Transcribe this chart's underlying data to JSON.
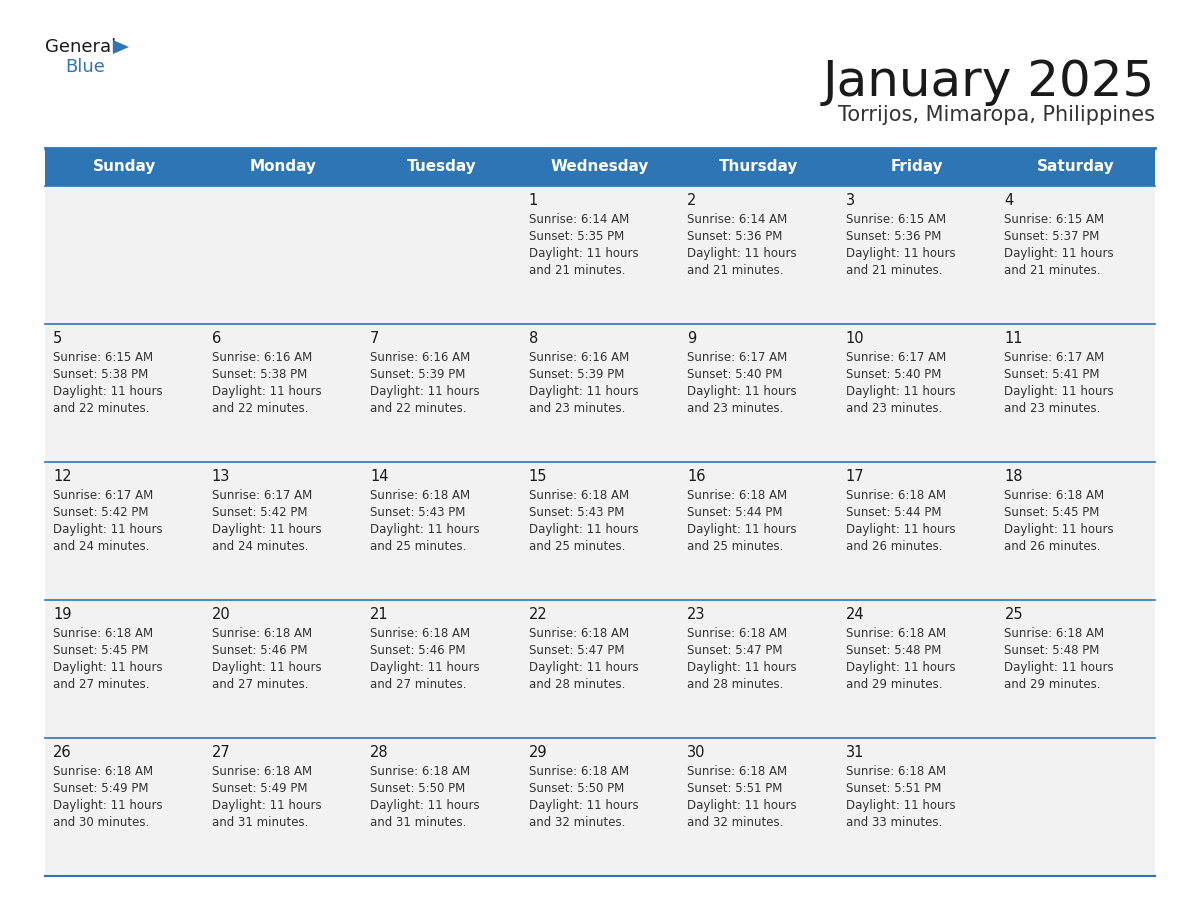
{
  "title": "January 2025",
  "subtitle": "Torrijos, Mimaropa, Philippines",
  "header_bg": "#2E75B6",
  "header_text_color": "#FFFFFF",
  "cell_bg_light": "#F2F2F2",
  "cell_bg_white": "#FFFFFF",
  "border_color": "#2E75B6",
  "day_headers": [
    "Sunday",
    "Monday",
    "Tuesday",
    "Wednesday",
    "Thursday",
    "Friday",
    "Saturday"
  ],
  "calendar_data": [
    [
      "",
      "",
      "",
      "1\nSunrise: 6:14 AM\nSunset: 5:35 PM\nDaylight: 11 hours\nand 21 minutes.",
      "2\nSunrise: 6:14 AM\nSunset: 5:36 PM\nDaylight: 11 hours\nand 21 minutes.",
      "3\nSunrise: 6:15 AM\nSunset: 5:36 PM\nDaylight: 11 hours\nand 21 minutes.",
      "4\nSunrise: 6:15 AM\nSunset: 5:37 PM\nDaylight: 11 hours\nand 21 minutes."
    ],
    [
      "5\nSunrise: 6:15 AM\nSunset: 5:38 PM\nDaylight: 11 hours\nand 22 minutes.",
      "6\nSunrise: 6:16 AM\nSunset: 5:38 PM\nDaylight: 11 hours\nand 22 minutes.",
      "7\nSunrise: 6:16 AM\nSunset: 5:39 PM\nDaylight: 11 hours\nand 22 minutes.",
      "8\nSunrise: 6:16 AM\nSunset: 5:39 PM\nDaylight: 11 hours\nand 23 minutes.",
      "9\nSunrise: 6:17 AM\nSunset: 5:40 PM\nDaylight: 11 hours\nand 23 minutes.",
      "10\nSunrise: 6:17 AM\nSunset: 5:40 PM\nDaylight: 11 hours\nand 23 minutes.",
      "11\nSunrise: 6:17 AM\nSunset: 5:41 PM\nDaylight: 11 hours\nand 23 minutes."
    ],
    [
      "12\nSunrise: 6:17 AM\nSunset: 5:42 PM\nDaylight: 11 hours\nand 24 minutes.",
      "13\nSunrise: 6:17 AM\nSunset: 5:42 PM\nDaylight: 11 hours\nand 24 minutes.",
      "14\nSunrise: 6:18 AM\nSunset: 5:43 PM\nDaylight: 11 hours\nand 25 minutes.",
      "15\nSunrise: 6:18 AM\nSunset: 5:43 PM\nDaylight: 11 hours\nand 25 minutes.",
      "16\nSunrise: 6:18 AM\nSunset: 5:44 PM\nDaylight: 11 hours\nand 25 minutes.",
      "17\nSunrise: 6:18 AM\nSunset: 5:44 PM\nDaylight: 11 hours\nand 26 minutes.",
      "18\nSunrise: 6:18 AM\nSunset: 5:45 PM\nDaylight: 11 hours\nand 26 minutes."
    ],
    [
      "19\nSunrise: 6:18 AM\nSunset: 5:45 PM\nDaylight: 11 hours\nand 27 minutes.",
      "20\nSunrise: 6:18 AM\nSunset: 5:46 PM\nDaylight: 11 hours\nand 27 minutes.",
      "21\nSunrise: 6:18 AM\nSunset: 5:46 PM\nDaylight: 11 hours\nand 27 minutes.",
      "22\nSunrise: 6:18 AM\nSunset: 5:47 PM\nDaylight: 11 hours\nand 28 minutes.",
      "23\nSunrise: 6:18 AM\nSunset: 5:47 PM\nDaylight: 11 hours\nand 28 minutes.",
      "24\nSunrise: 6:18 AM\nSunset: 5:48 PM\nDaylight: 11 hours\nand 29 minutes.",
      "25\nSunrise: 6:18 AM\nSunset: 5:48 PM\nDaylight: 11 hours\nand 29 minutes."
    ],
    [
      "26\nSunrise: 6:18 AM\nSunset: 5:49 PM\nDaylight: 11 hours\nand 30 minutes.",
      "27\nSunrise: 6:18 AM\nSunset: 5:49 PM\nDaylight: 11 hours\nand 31 minutes.",
      "28\nSunrise: 6:18 AM\nSunset: 5:50 PM\nDaylight: 11 hours\nand 31 minutes.",
      "29\nSunrise: 6:18 AM\nSunset: 5:50 PM\nDaylight: 11 hours\nand 32 minutes.",
      "30\nSunrise: 6:18 AM\nSunset: 5:51 PM\nDaylight: 11 hours\nand 32 minutes.",
      "31\nSunrise: 6:18 AM\nSunset: 5:51 PM\nDaylight: 11 hours\nand 33 minutes.",
      ""
    ]
  ],
  "title_fontsize": 36,
  "subtitle_fontsize": 15,
  "header_fontsize": 11,
  "cell_day_fontsize": 10.5,
  "cell_info_fontsize": 8.5,
  "logo_general_fontsize": 13,
  "logo_blue_fontsize": 13
}
